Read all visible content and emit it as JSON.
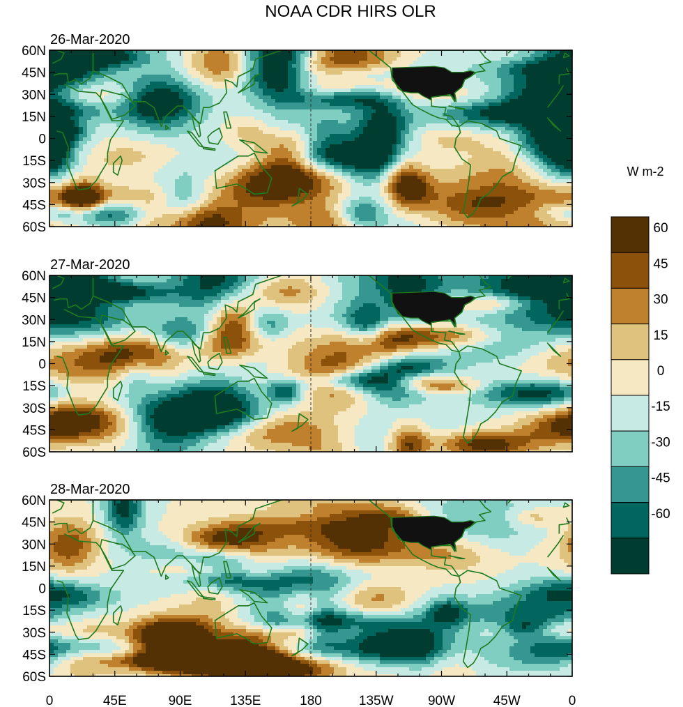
{
  "title": "NOAA CDR HIRS OLR",
  "panels": [
    {
      "date": "26-Mar-2020"
    },
    {
      "date": "27-Mar-2020"
    },
    {
      "date": "28-Mar-2020"
    }
  ],
  "y_ticks": [
    "60N",
    "45N",
    "30N",
    "15N",
    "0",
    "15S",
    "30S",
    "45S",
    "60S"
  ],
  "x_ticks": [
    "0",
    "45E",
    "90E",
    "135E",
    "180",
    "135W",
    "90W",
    "45W",
    "0"
  ],
  "colorbar": {
    "unit": "W m-2",
    "labels": [
      "60",
      "45",
      "30",
      "15",
      "0",
      "-15",
      "-30",
      "-45",
      "-60"
    ],
    "colors": [
      "#543005",
      "#8c510a",
      "#bf812d",
      "#dfc27d",
      "#f6e8c3",
      "#c7eae5",
      "#80cdc1",
      "#35978f",
      "#01665e",
      "#003c30"
    ]
  },
  "chart_data": {
    "type": "heatmap",
    "title": "NOAA CDR HIRS OLR",
    "variable_unit": "W m-2",
    "panels": [
      "26-Mar-2020",
      "27-Mar-2020",
      "28-Mar-2020"
    ],
    "lon_range": [
      0,
      360
    ],
    "lat_range": [
      -60,
      60
    ],
    "levels": [
      -60,
      -45,
      -30,
      -15,
      0,
      15,
      30,
      45,
      60
    ],
    "colors": [
      "#003c30",
      "#01665e",
      "#35978f",
      "#80cdc1",
      "#c7eae5",
      "#f6e8c3",
      "#dfc27d",
      "#bf812d",
      "#8c510a",
      "#543005"
    ],
    "dateline_dashed": true
  },
  "colors": {
    "coastline": "#1f7a1f",
    "land_mask": "#111111"
  }
}
